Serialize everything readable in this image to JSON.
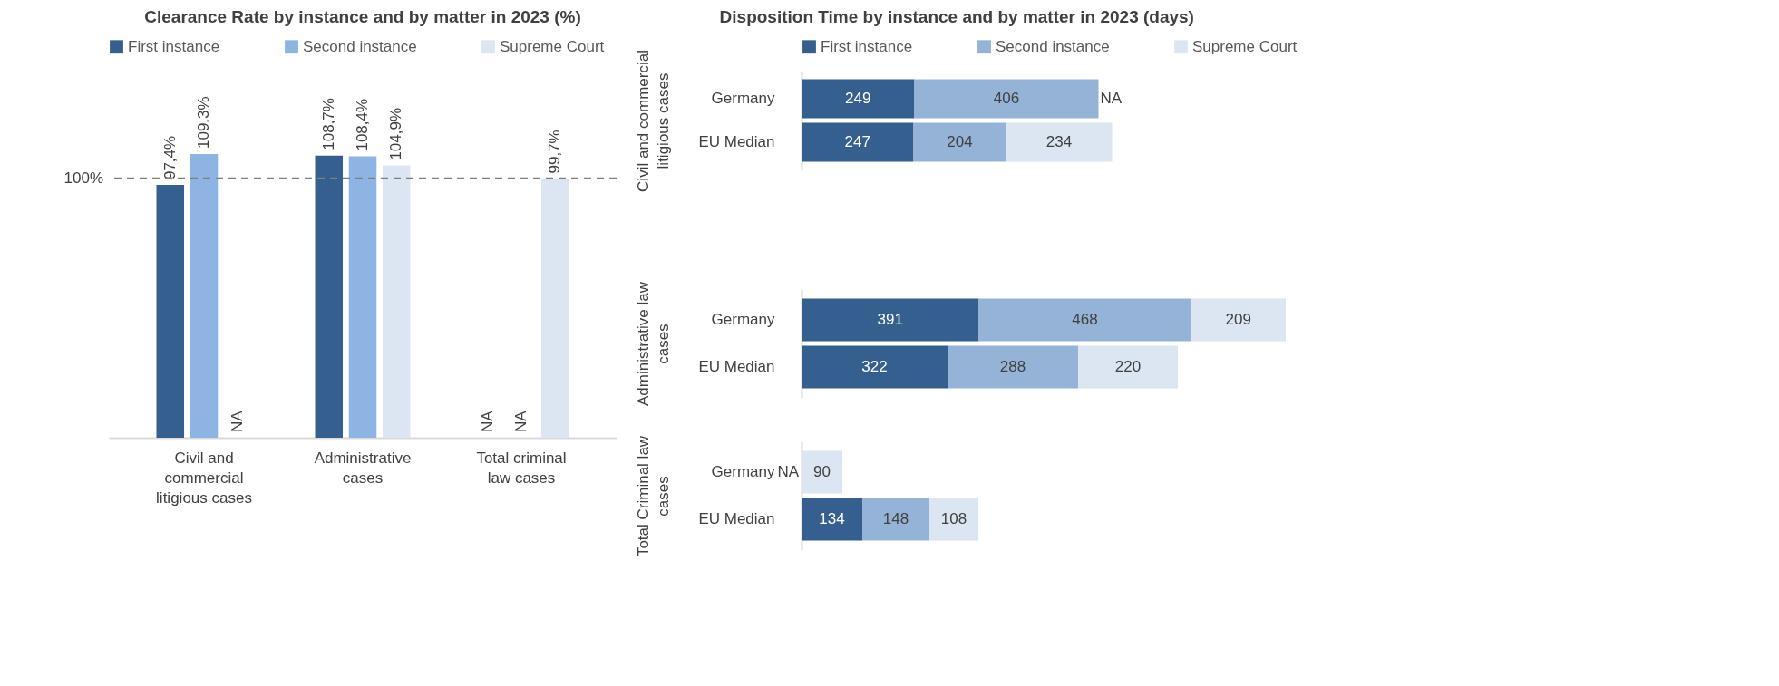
{
  "chart_data": [
    {
      "type": "bar",
      "title": "Clearance Rate by instance and by matter in 2023 (%)",
      "categories": [
        "Civil and commercial litigious cases",
        "Administrative cases",
        "Total criminal law cases"
      ],
      "series": [
        {
          "name": "First instance",
          "color": "#355f8e",
          "values": [
            97.4,
            108.7,
            null
          ],
          "value_labels": [
            "97,4%",
            "108,7%",
            "NA"
          ]
        },
        {
          "name": "Second instance",
          "color": "#8eb4e3",
          "values": [
            109.3,
            108.4,
            null
          ],
          "value_labels": [
            "109,3%",
            "108,4%",
            "NA"
          ]
        },
        {
          "name": "Supreme Court",
          "color": "#dce6f2",
          "values": [
            null,
            104.9,
            99.7
          ],
          "value_labels": [
            "NA",
            "104,9%",
            "99,7%"
          ]
        }
      ],
      "ref_lines": [
        {
          "axis": "y",
          "value": 100,
          "label": "100%",
          "line_style": "dashed",
          "color": "#7f7f7f"
        }
      ],
      "legend": "top",
      "tick_labels": "x"
    },
    {
      "type": "bar",
      "orientation": "horizontal",
      "stacked": true,
      "title": "Disposition Time by instance and by matter in 2023 (days)",
      "ylabel": "Civil and commercial litigious cases",
      "categories": [
        "Germany",
        "EU Median"
      ],
      "series": [
        {
          "name": "First instance",
          "color": "#355f8e",
          "values": [
            249,
            247
          ],
          "value_labels": [
            "249",
            "247"
          ]
        },
        {
          "name": "Second instance",
          "color": "#95b3d7",
          "values": [
            406,
            204
          ],
          "value_labels": [
            "406",
            "204"
          ]
        },
        {
          "name": "Supreme Court",
          "color": "#dce6f2",
          "values": [
            null,
            234
          ],
          "value_labels": [
            "NA",
            "234"
          ]
        }
      ],
      "legend": "top",
      "tick_labels": "y"
    },
    {
      "type": "bar",
      "orientation": "horizontal",
      "stacked": true,
      "ylabel": "Administrative law cases",
      "categories": [
        "Germany",
        "EU Median"
      ],
      "series": [
        {
          "color": "#355f8e",
          "values": [
            391,
            322
          ],
          "value_labels": [
            "391",
            "322"
          ]
        },
        {
          "color": "#95b3d7",
          "values": [
            468,
            288
          ],
          "value_labels": [
            "468",
            "288"
          ]
        },
        {
          "color": "#dce6f2",
          "values": [
            209,
            220
          ],
          "value_labels": [
            "209",
            "220"
          ]
        }
      ],
      "tick_labels": "y"
    },
    {
      "type": "bar",
      "orientation": "horizontal",
      "stacked": true,
      "ylabel": "Total Criminal law cases",
      "categories": [
        "Germany",
        "EU Median"
      ],
      "series": [
        {
          "color": "#355f8e",
          "values": [
            null,
            134
          ],
          "value_labels": [
            "NA",
            "134"
          ]
        },
        {
          "color": "#95b3d7",
          "values": [
            null,
            148
          ],
          "value_labels": [
            null,
            "148"
          ]
        },
        {
          "color": "#dce6f2",
          "values": [
            90,
            108
          ],
          "value_labels": [
            "90",
            "108"
          ]
        }
      ],
      "tick_labels": "y"
    }
  ]
}
